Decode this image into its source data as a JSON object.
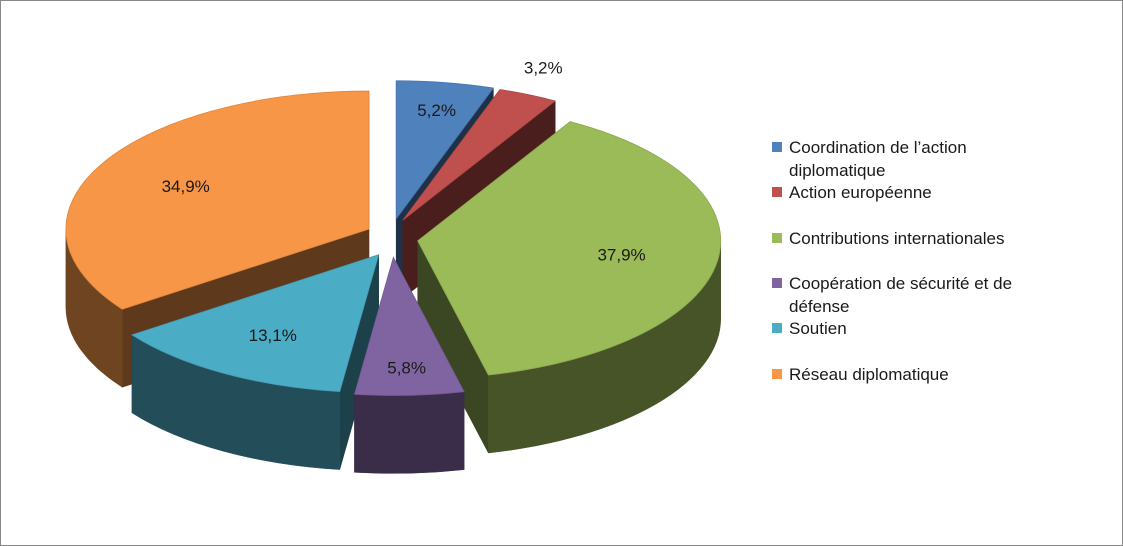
{
  "chart_data": {
    "type": "pie",
    "title": "",
    "legend_position": "right",
    "exploded": true,
    "three_d": true,
    "slices": [
      {
        "name": "Coordination de l’action diplomatique",
        "value": 5.2,
        "label": "5,2%",
        "color": "#4F81BD"
      },
      {
        "name": "Action européenne",
        "value": 3.2,
        "label": "3,2%",
        "color": "#C0504D"
      },
      {
        "name": "Contributions internationales",
        "value": 37.9,
        "label": "37,9%",
        "color": "#9BBB59"
      },
      {
        "name": "Coopération de sécurité et de défense",
        "value": 5.8,
        "label": "5,8%",
        "color": "#8064A2"
      },
      {
        "name": "Soutien",
        "value": 13.1,
        "label": "13,1%",
        "color": "#4BACC6"
      },
      {
        "name": "Réseau diplomatique",
        "value": 34.9,
        "label": "34,9%",
        "color": "#F79646"
      }
    ]
  }
}
